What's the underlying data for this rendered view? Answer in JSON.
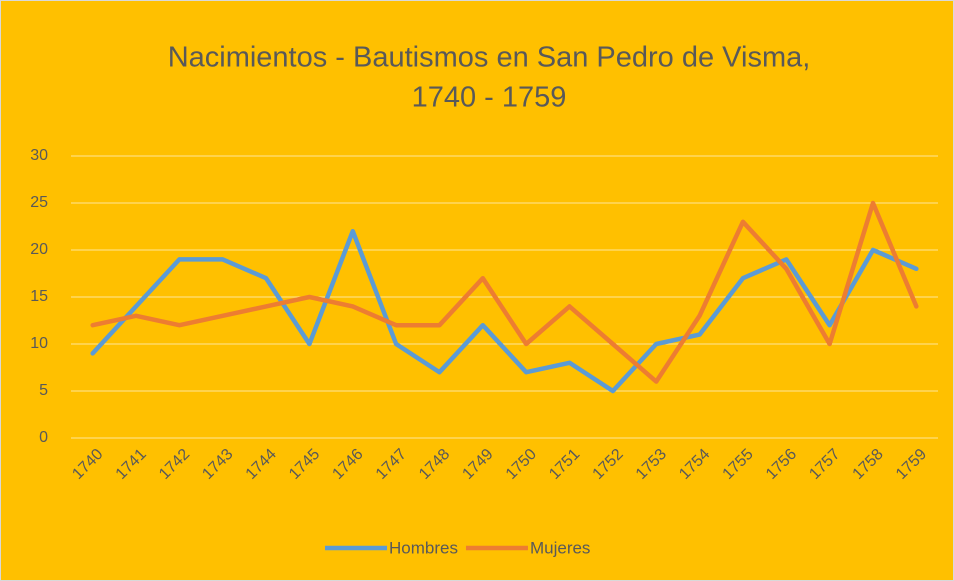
{
  "chart_data": {
    "type": "line",
    "title": [
      "Nacimientos - Bautismos en San Pedro de Visma,",
      "1740 - 1759"
    ],
    "categories": [
      "1740",
      "1741",
      "1742",
      "1743",
      "1744",
      "1745",
      "1746",
      "1747",
      "1748",
      "1749",
      "1750",
      "1751",
      "1752",
      "1753",
      "1754",
      "1755",
      "1756",
      "1757",
      "1758",
      "1759"
    ],
    "series": [
      {
        "name": "Hombres",
        "color": "#5B9BD5",
        "values": [
          9,
          14,
          19,
          19,
          17,
          10,
          22,
          10,
          7,
          12,
          7,
          8,
          5,
          10,
          11,
          17,
          19,
          12,
          20,
          18
        ]
      },
      {
        "name": "Mujeres",
        "color": "#ED7D31",
        "values": [
          12,
          13,
          12,
          13,
          14,
          15,
          14,
          12,
          12,
          17,
          10,
          14,
          10,
          6,
          13,
          23,
          18,
          10,
          25,
          14
        ]
      }
    ],
    "ylim": [
      0,
      30
    ],
    "yticks": [
      0,
      5,
      10,
      15,
      20,
      25,
      30
    ],
    "grid": true,
    "legend": "bottom",
    "background": "#FFC000"
  }
}
